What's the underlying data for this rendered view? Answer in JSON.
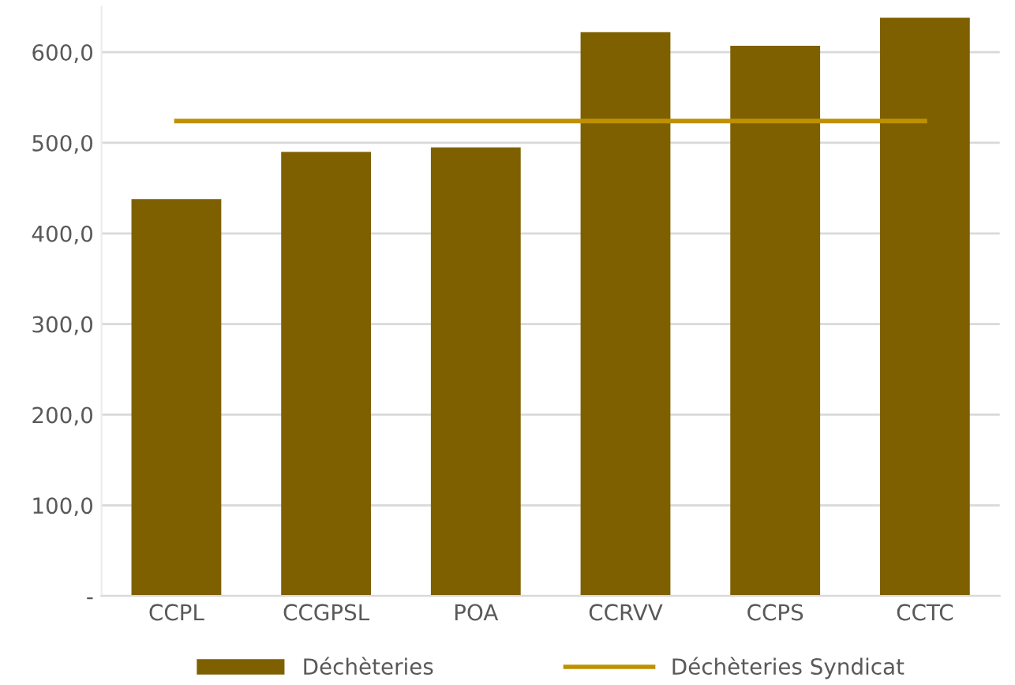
{
  "chart_data": {
    "type": "bar",
    "categories": [
      "CCPL",
      "CCGPSL",
      "POA",
      "CCRVV",
      "CCPS",
      "CCTC"
    ],
    "series": [
      {
        "name": "Déchèteries",
        "color": "#7f6000",
        "values": [
          438,
          490,
          495,
          622,
          607,
          638
        ]
      },
      {
        "name": "Déchèteries Syndicat",
        "type": "line",
        "color": "#bf9000",
        "values": [
          524,
          524,
          524,
          524,
          524,
          524
        ]
      }
    ],
    "ylim": [
      0,
      650
    ],
    "yticks": [
      {
        "value": 0,
        "label": "-"
      },
      {
        "value": 100,
        "label": "100,0"
      },
      {
        "value": 200,
        "label": "200,0"
      },
      {
        "value": 300,
        "label": "300,0"
      },
      {
        "value": 400,
        "label": "400,0"
      },
      {
        "value": 500,
        "label": "500,0"
      },
      {
        "value": 600,
        "label": "600,0"
      }
    ],
    "grid": "y",
    "legend": "bottom",
    "marker": "none",
    "line_style": "solid"
  }
}
